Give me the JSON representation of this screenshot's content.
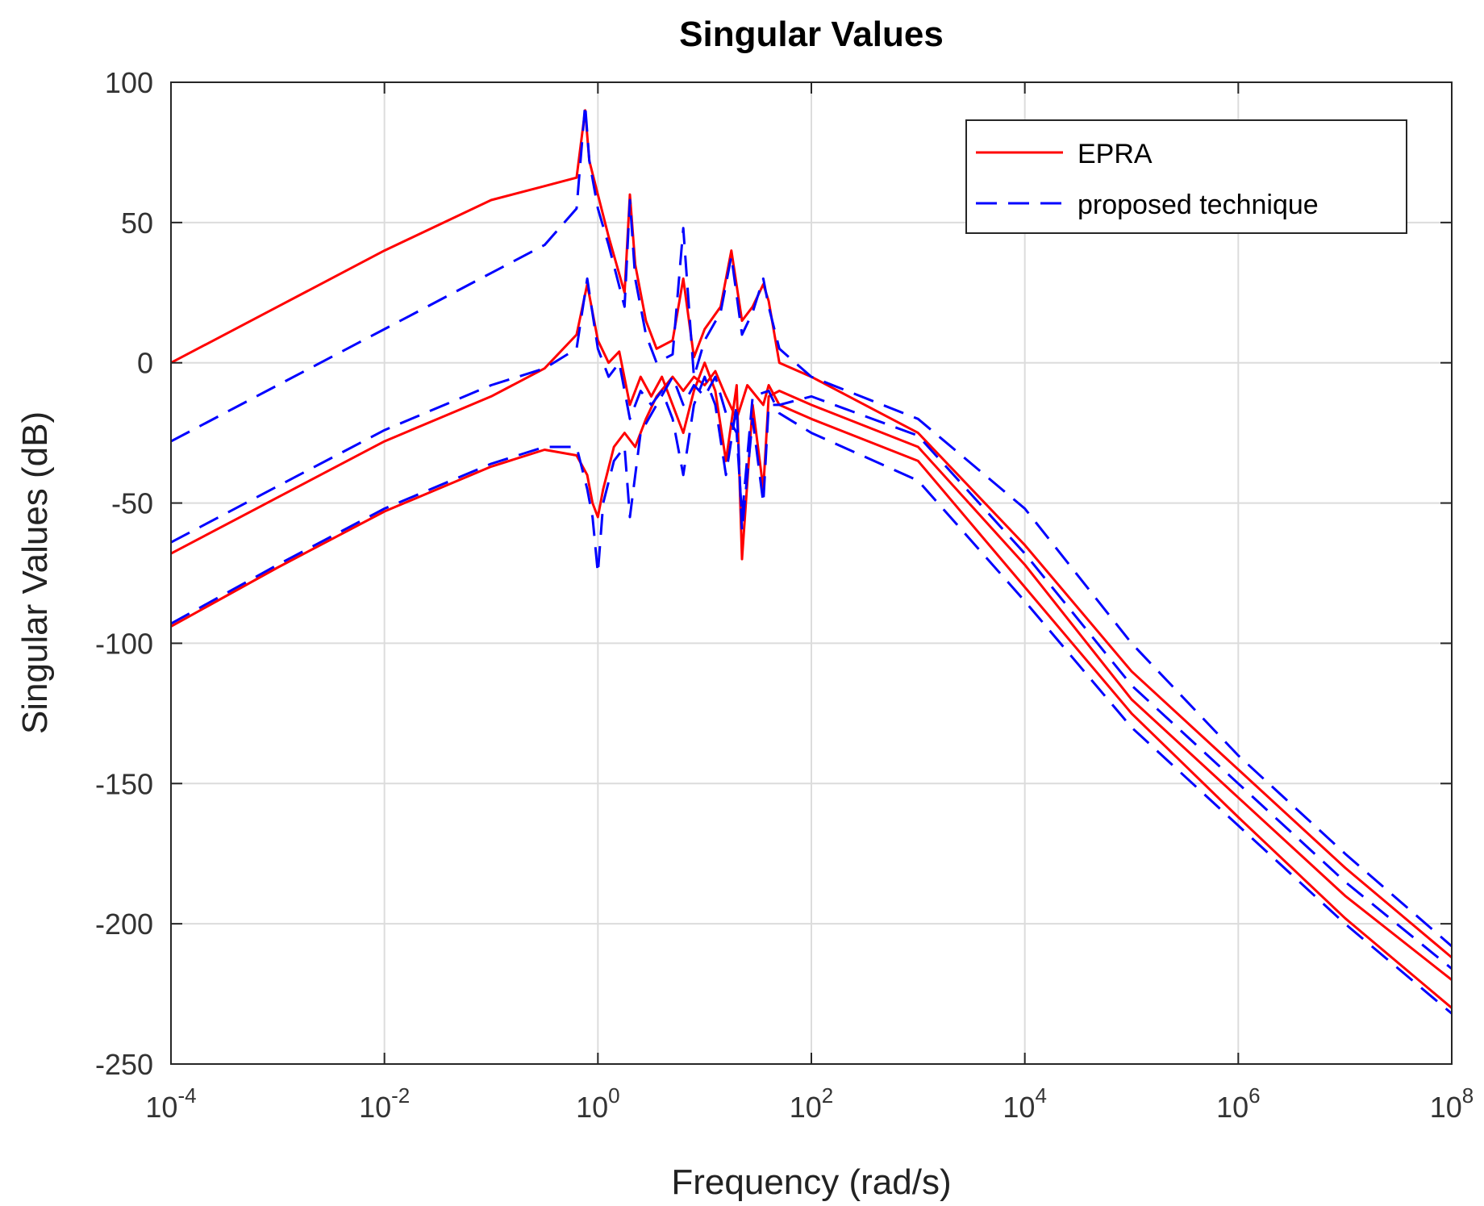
{
  "chart_data": {
    "type": "line",
    "title": "Singular Values",
    "xlabel": "Frequency (rad/s)",
    "ylabel": "Singular Values (dB)",
    "xscale": "log",
    "xlim_exp": [
      -4,
      8
    ],
    "ylim": [
      -250,
      100
    ],
    "grid": true,
    "legend_position": "top-right",
    "x_ticks": [
      {
        "base": "10",
        "exp": "-4"
      },
      {
        "base": "10",
        "exp": "-2"
      },
      {
        "base": "10",
        "exp": "0"
      },
      {
        "base": "10",
        "exp": "2"
      },
      {
        "base": "10",
        "exp": "4"
      },
      {
        "base": "10",
        "exp": "6"
      },
      {
        "base": "10",
        "exp": "8"
      }
    ],
    "y_ticks": [
      "100",
      "50",
      "0",
      "-50",
      "-100",
      "-150",
      "-200",
      "-250"
    ],
    "x_tick_exps": [
      -4,
      -2,
      0,
      2,
      4,
      6,
      8
    ],
    "y_tick_values": [
      100,
      50,
      0,
      -50,
      -100,
      -150,
      -200,
      -250
    ],
    "series": [
      {
        "name": "EPRA",
        "color": "#ff0000",
        "style": "solid",
        "curves": [
          [
            [
              -4,
              0
            ],
            [
              -3,
              20
            ],
            [
              -2,
              40
            ],
            [
              -1,
              58
            ],
            [
              -0.5,
              63
            ],
            [
              -0.2,
              66
            ],
            [
              -0.12,
              90
            ],
            [
              -0.08,
              72
            ],
            [
              0,
              60
            ],
            [
              0.1,
              45
            ],
            [
              0.25,
              25
            ],
            [
              0.3,
              60
            ],
            [
              0.35,
              35
            ],
            [
              0.45,
              15
            ],
            [
              0.55,
              5
            ],
            [
              0.7,
              8
            ],
            [
              0.8,
              30
            ],
            [
              0.9,
              2
            ],
            [
              1.0,
              12
            ],
            [
              1.15,
              20
            ],
            [
              1.25,
              40
            ],
            [
              1.35,
              15
            ],
            [
              1.45,
              20
            ],
            [
              1.55,
              28
            ],
            [
              1.6,
              22
            ],
            [
              1.7,
              0
            ],
            [
              2,
              -5
            ],
            [
              3,
              -25
            ],
            [
              4,
              -65
            ],
            [
              5,
              -110
            ],
            [
              6,
              -145
            ],
            [
              7,
              -180
            ],
            [
              8,
              -212
            ]
          ],
          [
            [
              -4,
              -68
            ],
            [
              -3,
              -48
            ],
            [
              -2,
              -28
            ],
            [
              -1,
              -12
            ],
            [
              -0.5,
              -2
            ],
            [
              -0.2,
              10
            ],
            [
              -0.1,
              28
            ],
            [
              0,
              8
            ],
            [
              0.1,
              0
            ],
            [
              0.2,
              4
            ],
            [
              0.3,
              -15
            ],
            [
              0.4,
              -5
            ],
            [
              0.5,
              -12
            ],
            [
              0.6,
              -5
            ],
            [
              0.7,
              -15
            ],
            [
              0.8,
              -25
            ],
            [
              0.9,
              -10
            ],
            [
              1.0,
              0
            ],
            [
              1.1,
              -10
            ],
            [
              1.2,
              -35
            ],
            [
              1.3,
              -8
            ],
            [
              1.35,
              -70
            ],
            [
              1.45,
              -15
            ],
            [
              1.55,
              -45
            ],
            [
              1.6,
              -12
            ],
            [
              1.7,
              -10
            ],
            [
              2,
              -15
            ],
            [
              3,
              -30
            ],
            [
              4,
              -72
            ],
            [
              5,
              -120
            ],
            [
              6,
              -155
            ],
            [
              7,
              -190
            ],
            [
              8,
              -220
            ]
          ],
          [
            [
              -4,
              -94
            ],
            [
              -3,
              -73
            ],
            [
              -2,
              -53
            ],
            [
              -1,
              -37
            ],
            [
              -0.5,
              -31
            ],
            [
              -0.2,
              -33
            ],
            [
              -0.1,
              -40
            ],
            [
              -0.05,
              -50
            ],
            [
              0,
              -55
            ],
            [
              0.05,
              -45
            ],
            [
              0.15,
              -30
            ],
            [
              0.25,
              -25
            ],
            [
              0.35,
              -30
            ],
            [
              0.45,
              -20
            ],
            [
              0.55,
              -12
            ],
            [
              0.7,
              -5
            ],
            [
              0.8,
              -10
            ],
            [
              0.9,
              -5
            ],
            [
              1.0,
              -8
            ],
            [
              1.1,
              -3
            ],
            [
              1.2,
              -12
            ],
            [
              1.3,
              -20
            ],
            [
              1.4,
              -8
            ],
            [
              1.55,
              -15
            ],
            [
              1.6,
              -8
            ],
            [
              1.7,
              -15
            ],
            [
              2,
              -20
            ],
            [
              3,
              -35
            ],
            [
              4,
              -80
            ],
            [
              5,
              -125
            ],
            [
              6,
              -162
            ],
            [
              7,
              -198
            ],
            [
              8,
              -230
            ]
          ]
        ]
      },
      {
        "name": "proposed technique",
        "color": "#0000ff",
        "style": "dashed",
        "curves": [
          [
            [
              -4,
              -28
            ],
            [
              -3,
              -8
            ],
            [
              -2,
              12
            ],
            [
              -1,
              32
            ],
            [
              -0.5,
              42
            ],
            [
              -0.2,
              55
            ],
            [
              -0.12,
              92
            ],
            [
              -0.08,
              72
            ],
            [
              0,
              55
            ],
            [
              0.1,
              42
            ],
            [
              0.25,
              20
            ],
            [
              0.3,
              58
            ],
            [
              0.35,
              30
            ],
            [
              0.45,
              10
            ],
            [
              0.55,
              0
            ],
            [
              0.7,
              3
            ],
            [
              0.8,
              48
            ],
            [
              0.9,
              -5
            ],
            [
              1.0,
              8
            ],
            [
              1.15,
              18
            ],
            [
              1.25,
              38
            ],
            [
              1.35,
              10
            ],
            [
              1.45,
              18
            ],
            [
              1.55,
              30
            ],
            [
              1.6,
              20
            ],
            [
              1.7,
              5
            ],
            [
              2,
              -5
            ],
            [
              3,
              -20
            ],
            [
              4,
              -52
            ],
            [
              5,
              -100
            ],
            [
              6,
              -140
            ],
            [
              7,
              -175
            ],
            [
              8,
              -208
            ]
          ],
          [
            [
              -4,
              -64
            ],
            [
              -3,
              -44
            ],
            [
              -2,
              -24
            ],
            [
              -1,
              -8
            ],
            [
              -0.5,
              -2
            ],
            [
              -0.2,
              5
            ],
            [
              -0.1,
              30
            ],
            [
              0,
              5
            ],
            [
              0.1,
              -5
            ],
            [
              0.2,
              0
            ],
            [
              0.3,
              -20
            ],
            [
              0.4,
              -10
            ],
            [
              0.5,
              -15
            ],
            [
              0.6,
              -10
            ],
            [
              0.7,
              -20
            ],
            [
              0.8,
              -40
            ],
            [
              0.9,
              -15
            ],
            [
              1.0,
              -5
            ],
            [
              1.1,
              -15
            ],
            [
              1.2,
              -40
            ],
            [
              1.3,
              -15
            ],
            [
              1.35,
              -60
            ],
            [
              1.45,
              -20
            ],
            [
              1.55,
              -50
            ],
            [
              1.6,
              -15
            ],
            [
              1.7,
              -15
            ],
            [
              2,
              -12
            ],
            [
              3,
              -26
            ],
            [
              4,
              -68
            ],
            [
              5,
              -115
            ],
            [
              6,
              -150
            ],
            [
              7,
              -185
            ],
            [
              8,
              -216
            ]
          ],
          [
            [
              -4,
              -93
            ],
            [
              -3,
              -72
            ],
            [
              -2,
              -52
            ],
            [
              -1,
              -36
            ],
            [
              -0.5,
              -30
            ],
            [
              -0.2,
              -30
            ],
            [
              -0.1,
              -45
            ],
            [
              -0.05,
              -55
            ],
            [
              0,
              -75
            ],
            [
              0.05,
              -50
            ],
            [
              0.15,
              -35
            ],
            [
              0.25,
              -30
            ],
            [
              0.3,
              -55
            ],
            [
              0.4,
              -25
            ],
            [
              0.55,
              -15
            ],
            [
              0.7,
              -5
            ],
            [
              0.8,
              -15
            ],
            [
              0.9,
              -8
            ],
            [
              1.0,
              -12
            ],
            [
              1.1,
              -5
            ],
            [
              1.2,
              -18
            ],
            [
              1.3,
              -25
            ],
            [
              1.35,
              -55
            ],
            [
              1.45,
              -12
            ],
            [
              1.6,
              -10
            ],
            [
              1.7,
              -18
            ],
            [
              2,
              -25
            ],
            [
              3,
              -42
            ],
            [
              4,
              -85
            ],
            [
              5,
              -130
            ],
            [
              6,
              -165
            ],
            [
              7,
              -200
            ],
            [
              8,
              -232
            ]
          ]
        ]
      }
    ]
  }
}
